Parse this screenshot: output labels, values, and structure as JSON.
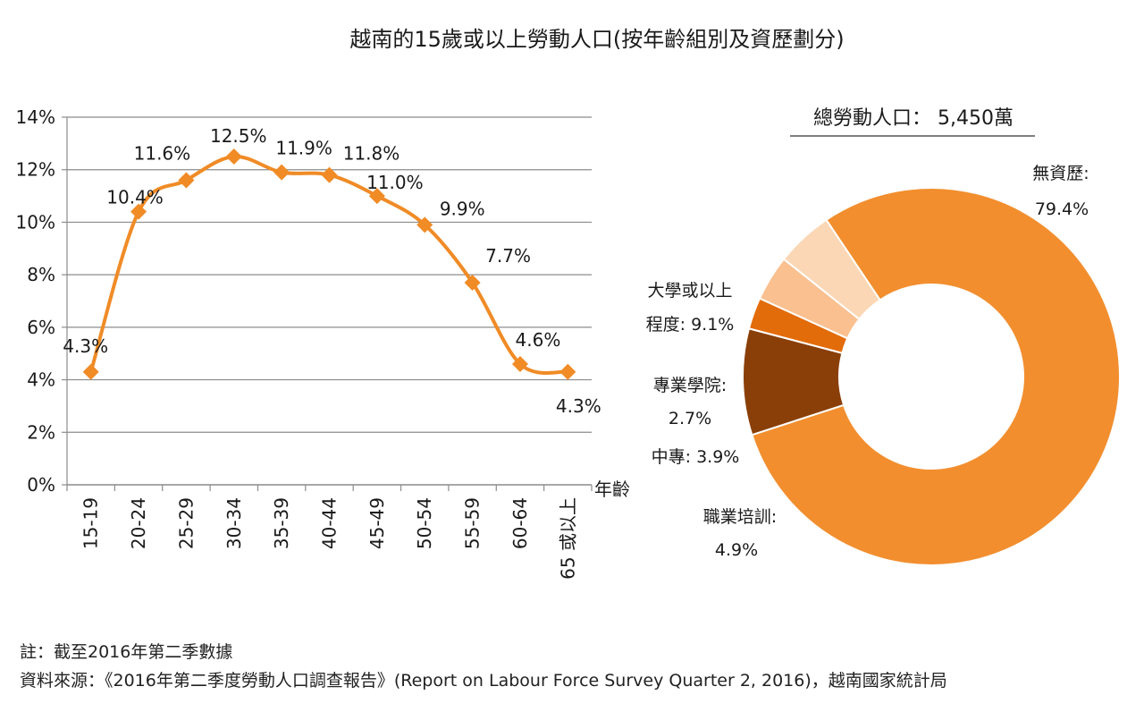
{
  "chart_data": [
    {
      "type": "line",
      "title": "越南的15歲或以上勞動人口(按年齡組別及資歷劃分)",
      "xlabel": "年齡",
      "ylabel": "",
      "ylim": [
        0,
        14
      ],
      "yticks": [
        "0%",
        "2%",
        "4%",
        "6%",
        "8%",
        "10%",
        "12%",
        "14%"
      ],
      "grid": true,
      "categories": [
        "15-19",
        "20-24",
        "25-29",
        "30-34",
        "35-39",
        "40-44",
        "45-49",
        "50-54",
        "55-59",
        "60-64",
        "65 或以上"
      ],
      "values": [
        4.3,
        10.4,
        11.6,
        12.5,
        11.9,
        11.8,
        11.0,
        9.9,
        7.7,
        4.6,
        4.3
      ],
      "value_labels": [
        "4.3%",
        "10.4%",
        "11.6%",
        "12.5%",
        "11.9%",
        "11.8%",
        "11.0%",
        "9.9%",
        "7.7%",
        "4.6%",
        "4.3%"
      ],
      "color": "#f08b26"
    },
    {
      "type": "pie",
      "variant": "donut",
      "title": "總勞動人口： 5,450萬",
      "slices": [
        {
          "name": "無資歷:",
          "value": 79.4,
          "label": "79.4%",
          "color": "#f28e2e"
        },
        {
          "name": "大學或以上",
          "name2": "程度:",
          "value": 9.1,
          "label": "9.1%",
          "color": "#8a3f08"
        },
        {
          "name": "專業學院:",
          "value": 2.7,
          "label": "2.7%",
          "color": "#e36c0a"
        },
        {
          "name": "中專:",
          "value": 3.9,
          "label": "3.9%",
          "color": "#fac090"
        },
        {
          "name": "職業培訓:",
          "value": 4.9,
          "label": "4.9%",
          "color": "#fbd7b5"
        }
      ]
    }
  ],
  "notes": {
    "note": "註：截至2016年第二季數據",
    "source": "資料來源：《2016年第二季度勞動人口調查報告》(Report on Labour Force Survey Quarter 2, 2016)，越南國家統計局"
  }
}
